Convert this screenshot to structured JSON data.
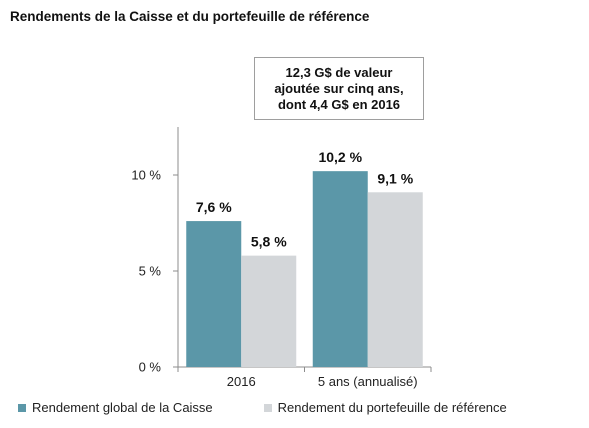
{
  "header": {
    "title": "Rendements de la Caisse et du portefeuille de référence"
  },
  "callout": {
    "lines": [
      "12,3 G$ de valeur",
      "ajoutée sur cinq ans,",
      "dont 4,4 G$  en 2016"
    ]
  },
  "chart_data": {
    "type": "bar",
    "title": "",
    "xlabel": "",
    "ylabel": "",
    "categories": [
      "2016",
      "5 ans (annualisé)"
    ],
    "series": [
      {
        "name": "Rendement global de la Caisse",
        "values": [
          7.6,
          10.2
        ],
        "labels": [
          "7,6 %",
          "10,2 %"
        ],
        "color": "#5b97a8"
      },
      {
        "name": "Rendement du portefeuille de référence",
        "values": [
          5.8,
          9.1
        ],
        "labels": [
          "5,8 %",
          "9,1 %"
        ],
        "color": "#d3d6d9"
      }
    ],
    "ylim": [
      0,
      12.5
    ],
    "yticks": [
      0,
      5,
      10
    ],
    "ytick_labels": [
      "0 %",
      "5 %",
      "10 %"
    ],
    "grid": false,
    "legend": "bottom"
  }
}
